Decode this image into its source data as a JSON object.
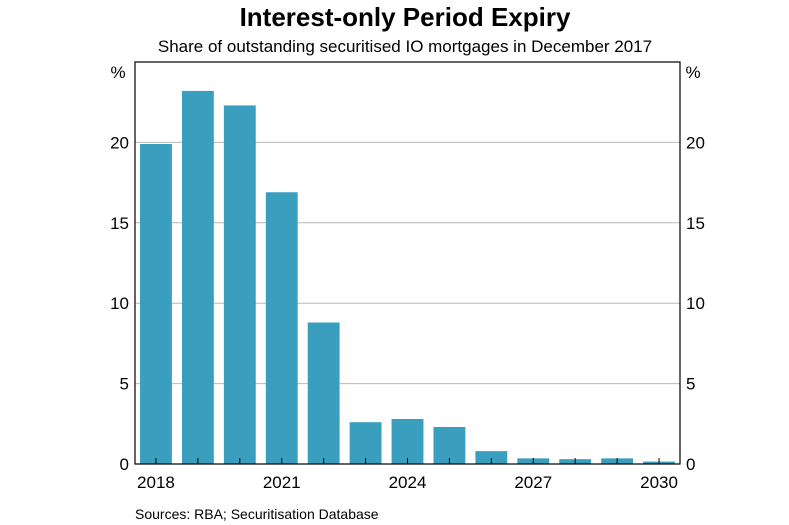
{
  "chart_data": {
    "type": "bar",
    "title": "Interest-only Period Expiry",
    "subtitle": "Share of outstanding securitised IO mortgages in December 2017",
    "y_unit_left": "%",
    "y_unit_right": "%",
    "source": "Sources: RBA; Securitisation Database",
    "categories": [
      "2018",
      "2019",
      "2020",
      "2021",
      "2022",
      "2023",
      "2024",
      "2025",
      "2026",
      "2027",
      "2028",
      "2029",
      "2030"
    ],
    "values": [
      19.9,
      23.2,
      22.3,
      16.9,
      8.8,
      2.6,
      2.8,
      2.3,
      0.8,
      0.35,
      0.3,
      0.35,
      0.15
    ],
    "x_tick_labels": [
      "2018",
      "2021",
      "2024",
      "2027",
      "2030"
    ],
    "y_ticks": [
      0,
      5,
      10,
      15,
      20
    ],
    "ylim": [
      0,
      25
    ],
    "grid": true,
    "bar_color": "#3a9ebf"
  }
}
